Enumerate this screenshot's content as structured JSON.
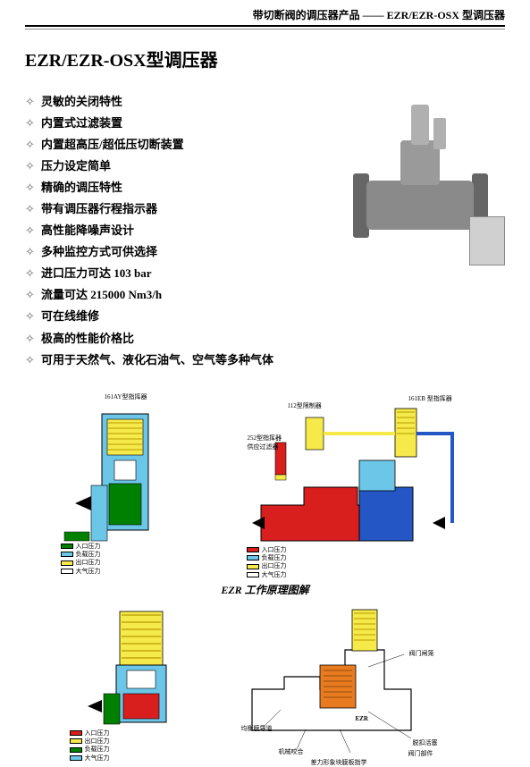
{
  "header": {
    "prefix": "带切断阀的调压器产品",
    "sep": "——",
    "model": "EZR/EZR-OSX 型调压器"
  },
  "title": "EZR/EZR-OSX型调压器",
  "features": [
    "灵敏的关闭特性",
    "内置式过滤装置",
    "内置超高压/超低压切断装置",
    "压力设定简单",
    "精确的调压特性",
    "带有调压器行程指示器",
    "高性能降噪声设计",
    "多种监控方式可供选择",
    "进口压力可达 103 bar",
    "流量可达 215000 Nm3/h",
    "可在线维修",
    "极高的性能价格比",
    "可用于天然气、液化石油气、空气等多种气体"
  ],
  "caption": "EZR 工作原理图解",
  "diagram_labels": {
    "d1_left_top": "161AY型指挥器",
    "d1_right_top_left": "112型限制器",
    "d1_right_top_right": "161EB 型指挥器",
    "d1_right_mid": "252型指挥器\n供应过滤器",
    "d2_r_1": "均衡膜导道",
    "d2_r_2": "机械咬合",
    "d2_r_3": "差力形象块膜板指学",
    "d2_r_4": "阀门闸笼",
    "d2_r_5": "脱扣活塞",
    "d2_r_6": "阀门部件",
    "d2_r_7": "EZR"
  },
  "legends": {
    "set1": [
      {
        "color": "#008000",
        "label": "入口压力"
      },
      {
        "color": "#6cc6e8",
        "label": "负载压力"
      },
      {
        "color": "#f6e94a",
        "label": "出口压力"
      },
      {
        "color": "#ffffff",
        "label": "大气压力"
      }
    ],
    "set2": [
      {
        "color": "#d91e1e",
        "label": "入口压力"
      },
      {
        "color": "#6cc6e8",
        "label": "负载压力"
      },
      {
        "color": "#f6e94a",
        "label": "出口压力"
      },
      {
        "color": "#ffffff",
        "label": "大气压力"
      }
    ],
    "set3": [
      {
        "color": "#d91e1e",
        "label": "入口压力"
      },
      {
        "color": "#f6e94a",
        "label": "出口压力"
      },
      {
        "color": "#008000",
        "label": "负载压力"
      },
      {
        "color": "#6cc6e8",
        "label": "大气压力"
      }
    ]
  },
  "colors": {
    "red": "#d91e1e",
    "green": "#008000",
    "yellow": "#f6e94a",
    "cyan": "#6cc6e8",
    "blue": "#2457c5",
    "orange": "#e87b1f",
    "gray": "#999999",
    "outline": "#000000"
  }
}
